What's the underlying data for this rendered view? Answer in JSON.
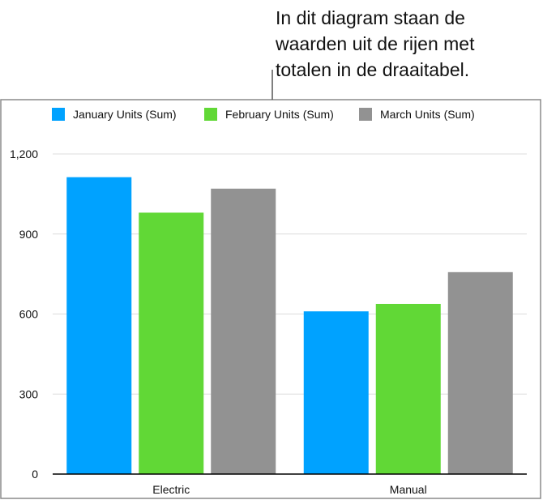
{
  "annotation": "In dit diagram staan de\nwaarden uit de rijen met\ntotalen in de draaitabel.",
  "chart_data": {
    "type": "bar",
    "title": "",
    "xlabel": "",
    "ylabel": "",
    "categories": [
      "Electric",
      "Manual"
    ],
    "series": [
      {
        "name": "January Units (Sum)",
        "color": "#00a2ff",
        "values": [
          1113,
          610
        ]
      },
      {
        "name": "February Units (Sum)",
        "color": "#61d836",
        "values": [
          980,
          638
        ]
      },
      {
        "name": "March Units (Sum)",
        "color": "#929292",
        "values": [
          1070,
          757
        ]
      }
    ],
    "ylim": [
      0,
      1200
    ],
    "yticks": [
      0,
      300,
      600,
      900,
      1200
    ],
    "ytick_labels": [
      "0",
      "300",
      "600",
      "900",
      "1,200"
    ],
    "grid": true,
    "legend_position": "top"
  }
}
